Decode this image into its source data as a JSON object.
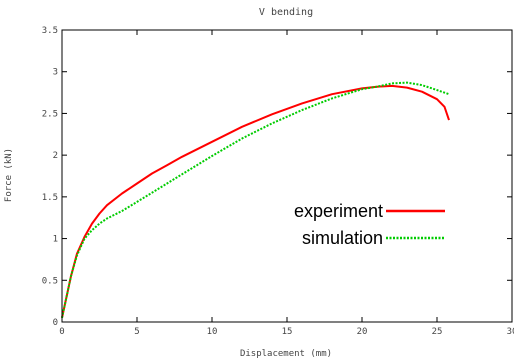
{
  "chart_data": {
    "type": "line",
    "title": "V bending",
    "xlabel": "Displacement (mm)",
    "ylabel": "Force (kN)",
    "xlim": [
      0,
      30
    ],
    "ylim": [
      0,
      3.5
    ],
    "xticks": [
      "0",
      "5",
      "10",
      "15",
      "20",
      "25",
      "30"
    ],
    "yticks": [
      "0",
      "0.5",
      "1",
      "1.5",
      "2",
      "2.5",
      "3",
      "3.5"
    ],
    "grid": false,
    "legend_position": "center-right",
    "series": [
      {
        "name": "experiment",
        "color": "#ff0000",
        "style": "solid",
        "points": [
          [
            0,
            0.05
          ],
          [
            0.3,
            0.3
          ],
          [
            0.6,
            0.55
          ],
          [
            1.0,
            0.82
          ],
          [
            1.5,
            1.02
          ],
          [
            2,
            1.18
          ],
          [
            2.5,
            1.3
          ],
          [
            3,
            1.4
          ],
          [
            4,
            1.54
          ],
          [
            5,
            1.66
          ],
          [
            6,
            1.78
          ],
          [
            7,
            1.88
          ],
          [
            8,
            1.98
          ],
          [
            10,
            2.16
          ],
          [
            12,
            2.34
          ],
          [
            14,
            2.49
          ],
          [
            16,
            2.62
          ],
          [
            18,
            2.73
          ],
          [
            20,
            2.8
          ],
          [
            21,
            2.82
          ],
          [
            22,
            2.83
          ],
          [
            23,
            2.81
          ],
          [
            24,
            2.76
          ],
          [
            25,
            2.67
          ],
          [
            25.5,
            2.58
          ],
          [
            25.8,
            2.42
          ]
        ]
      },
      {
        "name": "simulation",
        "color": "#00cc00",
        "style": "dotted",
        "points": [
          [
            0,
            0.05
          ],
          [
            0.3,
            0.3
          ],
          [
            0.6,
            0.55
          ],
          [
            1.0,
            0.8
          ],
          [
            1.5,
            1.0
          ],
          [
            2,
            1.1
          ],
          [
            2.5,
            1.18
          ],
          [
            3,
            1.24
          ],
          [
            4,
            1.33
          ],
          [
            5,
            1.44
          ],
          [
            6,
            1.55
          ],
          [
            7,
            1.66
          ],
          [
            8,
            1.77
          ],
          [
            10,
            1.99
          ],
          [
            12,
            2.2
          ],
          [
            14,
            2.38
          ],
          [
            16,
            2.54
          ],
          [
            18,
            2.68
          ],
          [
            20,
            2.79
          ],
          [
            21,
            2.82
          ],
          [
            22,
            2.86
          ],
          [
            23,
            2.87
          ],
          [
            24,
            2.84
          ],
          [
            25,
            2.78
          ],
          [
            25.8,
            2.73
          ]
        ]
      }
    ]
  }
}
